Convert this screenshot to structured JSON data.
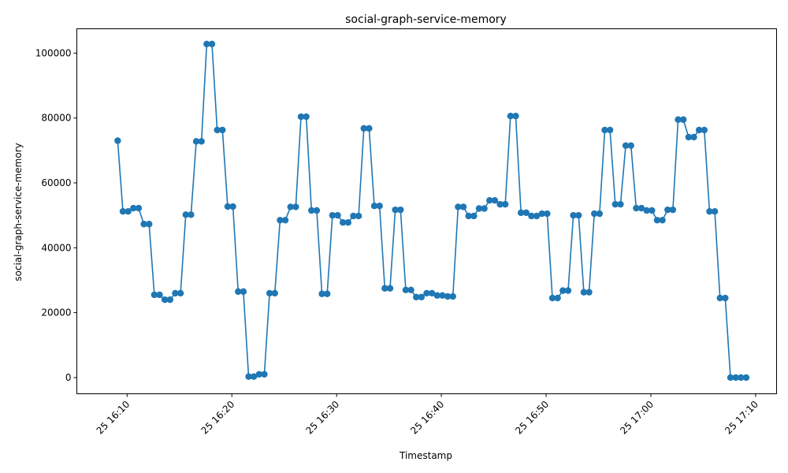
{
  "chart_data": {
    "type": "line",
    "title": "social-graph-service-memory",
    "xlabel": "Timestamp",
    "ylabel": "social-graph-service-memory",
    "ylim": [
      -5000,
      107500
    ],
    "y_ticks": [
      0,
      20000,
      40000,
      60000,
      80000,
      100000
    ],
    "x_tick_labels": [
      "25 16:10",
      "25 16:20",
      "25 16:30",
      "25 16:40",
      "25 16:50",
      "25 17:00",
      "25 17:10"
    ],
    "x_tick_minutes": [
      10,
      20,
      30,
      40,
      50,
      60,
      70
    ],
    "xlim_minutes": [
      5.2,
      72.0
    ],
    "line_color": "#1f77b4",
    "series": [
      {
        "x": [
          9.1,
          9.6,
          10.1,
          10.6,
          11.1,
          11.6,
          12.1,
          12.6,
          13.1,
          13.6,
          14.1,
          14.6,
          15.1,
          15.6,
          16.1,
          16.6,
          17.1,
          17.6,
          18.1,
          18.6,
          19.1,
          19.6,
          20.1,
          20.6,
          21.1,
          21.6,
          22.1,
          22.6,
          23.1,
          23.6,
          24.1,
          24.6,
          25.1,
          25.6,
          26.1,
          26.6,
          27.1,
          27.6,
          28.1,
          28.6,
          29.1,
          29.6,
          30.1,
          30.6,
          31.1,
          31.6,
          32.1,
          32.6,
          33.1,
          33.6,
          34.1,
          34.6,
          35.1,
          35.6,
          36.1,
          36.6,
          37.1,
          37.6,
          38.1,
          38.6,
          39.1,
          39.6,
          40.1,
          40.6,
          41.1,
          41.6,
          42.1,
          42.6,
          43.1,
          43.6,
          44.1,
          44.6,
          45.1,
          45.6,
          46.1,
          46.6,
          47.1,
          47.6,
          48.1,
          48.6,
          49.1,
          49.6,
          50.1,
          50.6,
          51.1,
          51.6,
          52.1,
          52.6,
          53.1,
          53.6,
          54.1,
          54.6,
          55.1,
          55.6,
          56.1,
          56.6,
          57.1,
          57.6,
          58.1,
          58.6,
          59.1,
          59.6,
          60.1,
          60.6,
          61.1,
          61.6,
          62.1,
          62.6,
          63.1,
          63.6,
          64.1,
          64.6,
          65.1,
          65.6,
          66.1,
          66.6,
          67.1,
          67.6,
          68.1,
          68.6,
          69.1
        ],
        "y": [
          73000,
          51200,
          51200,
          52200,
          52200,
          47300,
          47300,
          25500,
          25500,
          24000,
          24000,
          26000,
          26000,
          50200,
          50200,
          72800,
          72800,
          102800,
          102800,
          76300,
          76300,
          52700,
          52700,
          26500,
          26500,
          300,
          300,
          1000,
          1000,
          26000,
          26000,
          48500,
          48500,
          52600,
          52600,
          80400,
          80400,
          51500,
          51500,
          25800,
          25800,
          50000,
          50000,
          47800,
          47800,
          49800,
          49800,
          76800,
          76800,
          52900,
          52900,
          27500,
          27500,
          51700,
          51700,
          27000,
          27000,
          24800,
          24800,
          26000,
          26000,
          25300,
          25300,
          25000,
          25000,
          52600,
          52600,
          49800,
          49800,
          52100,
          52100,
          54600,
          54600,
          53400,
          53400,
          80600,
          80600,
          50800,
          50800,
          49800,
          49800,
          50500,
          50500,
          24500,
          24500,
          26800,
          26800,
          50000,
          50000,
          26300,
          26300,
          50500,
          50500,
          76300,
          76300,
          53400,
          53400,
          71500,
          71500,
          52200,
          52200,
          51500,
          51500,
          48500,
          48500,
          51700,
          51700,
          79500,
          79500,
          74100,
          74100,
          76300,
          76300,
          51200,
          51200,
          24500,
          24500,
          0,
          0,
          0,
          0
        ]
      }
    ]
  }
}
